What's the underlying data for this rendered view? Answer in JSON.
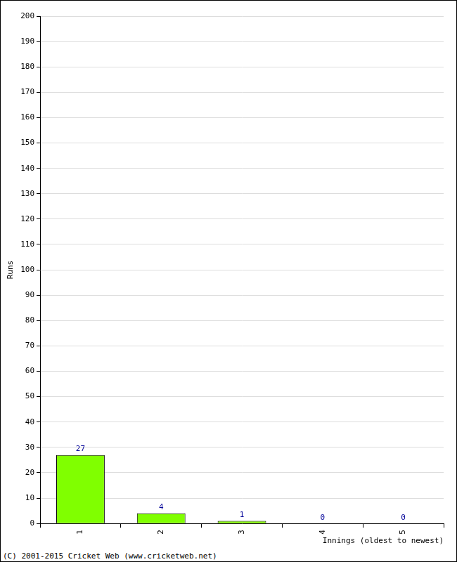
{
  "chart_data": {
    "type": "bar",
    "categories": [
      "1",
      "2",
      "3",
      "4",
      "5"
    ],
    "values": [
      27,
      4,
      1,
      0,
      0
    ],
    "color": "#80ff00",
    "x_label": "Innings (oldest to newest)",
    "y_label": "Runs",
    "annotations": [
      "(C) 2001-2015 Cricket Web (www.cricketweb.net)"
    ],
    "ylim": [
      0,
      200
    ],
    "yticks": [
      0,
      10,
      20,
      30,
      40,
      50,
      60,
      70,
      80,
      90,
      100,
      110,
      120,
      130,
      140,
      150,
      160,
      170,
      180,
      190,
      200
    ],
    "grid": true,
    "data_labels": true
  }
}
